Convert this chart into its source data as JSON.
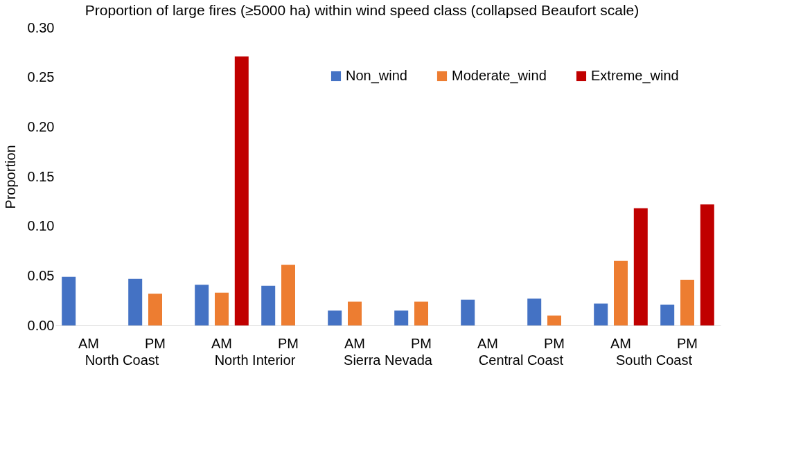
{
  "chart_data": {
    "type": "bar",
    "title": "Proportion of large fires (≥5000 ha) within wind speed class (collapsed Beaufort scale)",
    "ylabel": "Proportion",
    "categories": [
      "AM",
      "PM",
      "AM",
      "PM",
      "AM",
      "PM",
      "AM",
      "PM",
      "AM",
      "PM"
    ],
    "series": [
      {
        "name": "Non_wind",
        "color": "#4472c4",
        "values": [
          0.049,
          0.047,
          0.041,
          0.04,
          0.015,
          0.015,
          0.026,
          0.027,
          0.022,
          0.021
        ]
      },
      {
        "name": "Moderate_wind",
        "color": "#ed7d31",
        "values": [
          null,
          0.032,
          0.033,
          0.061,
          0.024,
          0.024,
          null,
          0.01,
          0.065,
          0.046
        ]
      },
      {
        "name": "Extreme_wind",
        "color": "#c00000",
        "values": [
          null,
          null,
          0.271,
          null,
          null,
          null,
          null,
          null,
          0.118,
          0.122
        ]
      }
    ],
    "annotations": [
      "North Coast",
      "North Interior",
      "Sierra Nevada",
      "Central Coast",
      "South Coast"
    ],
    "ylim": [
      0,
      0.3
    ],
    "yticks": [
      {
        "value": 0,
        "label": "0.00"
      },
      0.05,
      {
        "value": 0.1,
        "label": "0.10"
      },
      0.15,
      {
        "value": 0.2,
        "label": "0.20"
      },
      0.25,
      {
        "value": 0.3,
        "label": "0.30"
      }
    ],
    "grid": false,
    "legend": "top right"
  }
}
